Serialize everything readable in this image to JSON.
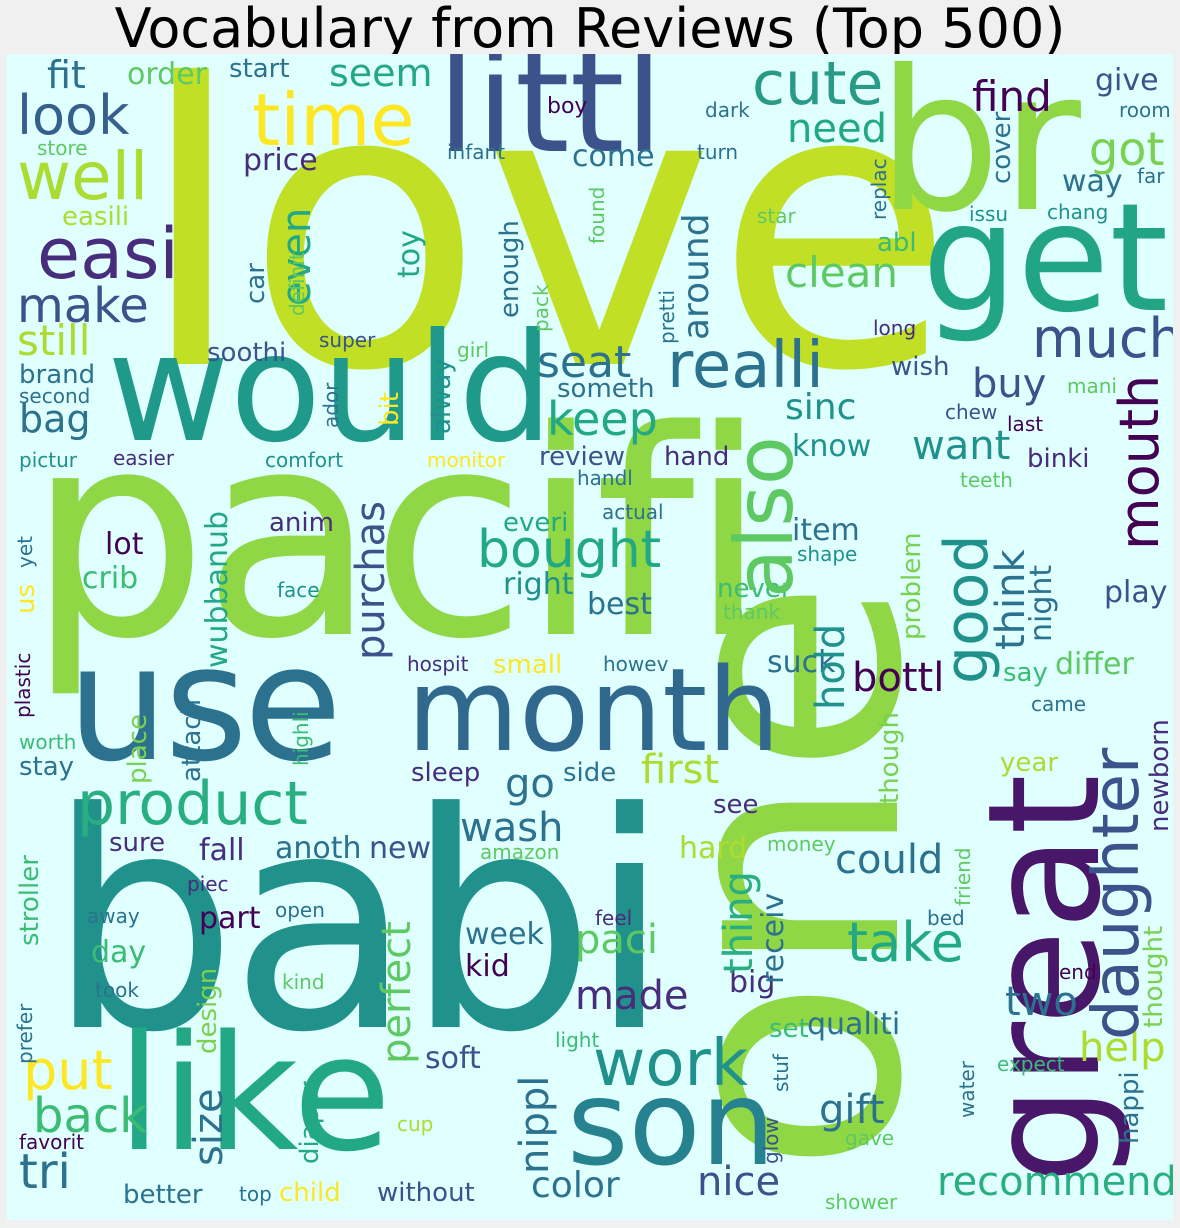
{
  "title": "Vocabulary from Reviews (Top 500)",
  "palette": {
    "background": "#e0ffff",
    "page": "#f0f0f0",
    "viridis": [
      "#440154",
      "#472d7b",
      "#3b528b",
      "#2c728e",
      "#21918c",
      "#28ae80",
      "#5ec962",
      "#addc30",
      "#fde725"
    ]
  },
  "words": [
    {
      "text": "love",
      "color": "#c0df25",
      "size": 390
    },
    {
      "text": "pacifi",
      "color": "#8fd744",
      "size": 285
    },
    {
      "text": "babi",
      "color": "#21918c",
      "size": 300
    },
    {
      "text": "one",
      "color": "#8fd744",
      "size": 320
    },
    {
      "text": "br",
      "color": "#8fd744",
      "size": 195
    },
    {
      "text": "littl",
      "color": "#3b528b",
      "size": 140
    },
    {
      "text": "get",
      "color": "#21a585",
      "size": 150
    },
    {
      "text": "would",
      "color": "#1f9a8a",
      "size": 150
    },
    {
      "text": "use",
      "color": "#2c728e",
      "size": 160
    },
    {
      "text": "like",
      "color": "#22a884",
      "size": 160
    },
    {
      "text": "great",
      "color": "#481769",
      "size": 155
    },
    {
      "text": "month",
      "color": "#31688e",
      "size": 115
    },
    {
      "text": "son",
      "color": "#26828e",
      "size": 118
    },
    {
      "text": "time",
      "color": "#fde725",
      "size": 72
    },
    {
      "text": "cute",
      "color": "#2a9a88",
      "size": 60
    },
    {
      "text": "well",
      "color": "#aadc32",
      "size": 66
    },
    {
      "text": "easi",
      "color": "#472d7b",
      "size": 70
    },
    {
      "text": "look",
      "color": "#35608d",
      "size": 54
    },
    {
      "text": "make",
      "color": "#3b528b",
      "size": 48
    },
    {
      "text": "fit",
      "color": "#2c728e",
      "size": 38
    },
    {
      "text": "order",
      "color": "#5ec962",
      "size": 30
    },
    {
      "text": "start",
      "color": "#2c728e",
      "size": 26
    },
    {
      "text": "seem",
      "color": "#22a884",
      "size": 38
    },
    {
      "text": "find",
      "color": "#440154",
      "size": 42
    },
    {
      "text": "give",
      "color": "#3b528b",
      "size": 30
    },
    {
      "text": "room",
      "color": "#2c728e",
      "size": 20
    },
    {
      "text": "boy",
      "color": "#440154",
      "size": 22
    },
    {
      "text": "dark",
      "color": "#2c728e",
      "size": 20
    },
    {
      "text": "need",
      "color": "#22a884",
      "size": 40
    },
    {
      "text": "got",
      "color": "#7ad151",
      "size": 46
    },
    {
      "text": "store",
      "color": "#5ec962",
      "size": 20
    },
    {
      "text": "infant",
      "color": "#2c728e",
      "size": 20
    },
    {
      "text": "turn",
      "color": "#2c728e",
      "size": 20
    },
    {
      "text": "price",
      "color": "#472d7b",
      "size": 30
    },
    {
      "text": "come",
      "color": "#2c728e",
      "size": 30
    },
    {
      "text": "way",
      "color": "#2c728e",
      "size": 30
    },
    {
      "text": "far",
      "color": "#2c728e",
      "size": 20
    },
    {
      "text": "easili",
      "color": "#addc30",
      "size": 26
    },
    {
      "text": "star",
      "color": "#5ec962",
      "size": 20
    },
    {
      "text": "issu",
      "color": "#21918c",
      "size": 20
    },
    {
      "text": "chang",
      "color": "#21918c",
      "size": 20
    },
    {
      "text": "clean",
      "color": "#5ec962",
      "size": 42
    },
    {
      "text": "abl",
      "color": "#3bbc75",
      "size": 26
    },
    {
      "text": "long",
      "color": "#472d7b",
      "size": 20
    },
    {
      "text": "still",
      "color": "#addc30",
      "size": 42
    },
    {
      "text": "much",
      "color": "#3b528b",
      "size": 54
    },
    {
      "text": "realli",
      "color": "#2c728e",
      "size": 64
    },
    {
      "text": "seat",
      "color": "#2c728e",
      "size": 44
    },
    {
      "text": "soothi",
      "color": "#3b528b",
      "size": 26
    },
    {
      "text": "super",
      "color": "#3b528b",
      "size": 20
    },
    {
      "text": "girl",
      "color": "#5ec962",
      "size": 20
    },
    {
      "text": "wish",
      "color": "#3b528b",
      "size": 26
    },
    {
      "text": "buy",
      "color": "#3b528b",
      "size": 40
    },
    {
      "text": "brand",
      "color": "#2c728e",
      "size": 26
    },
    {
      "text": "second",
      "color": "#2c728e",
      "size": 20
    },
    {
      "text": "someth",
      "color": "#2c728e",
      "size": 26
    },
    {
      "text": "bag",
      "color": "#2c728e",
      "size": 38
    },
    {
      "text": "keep",
      "color": "#22a884",
      "size": 46
    },
    {
      "text": "sinc",
      "color": "#21918c",
      "size": 36
    },
    {
      "text": "chew",
      "color": "#3b528b",
      "size": 20
    },
    {
      "text": "mani",
      "color": "#5ec962",
      "size": 20
    },
    {
      "text": "last",
      "color": "#440154",
      "size": 20
    },
    {
      "text": "pictur",
      "color": "#21918c",
      "size": 20
    },
    {
      "text": "easier",
      "color": "#472d7b",
      "size": 20
    },
    {
      "text": "comfort",
      "color": "#21918c",
      "size": 20
    },
    {
      "text": "monitor",
      "color": "#fde725",
      "size": 20
    },
    {
      "text": "review",
      "color": "#3b528b",
      "size": 26
    },
    {
      "text": "hand",
      "color": "#472d7b",
      "size": 26
    },
    {
      "text": "want",
      "color": "#21918c",
      "size": 40
    },
    {
      "text": "know",
      "color": "#21918c",
      "size": 30
    },
    {
      "text": "binki",
      "color": "#472d7b",
      "size": 26
    },
    {
      "text": "handl",
      "color": "#2c728e",
      "size": 20
    },
    {
      "text": "teeth",
      "color": "#5ec962",
      "size": 20
    },
    {
      "text": "actual",
      "color": "#2c728e",
      "size": 20
    },
    {
      "text": "anim",
      "color": "#472d7b",
      "size": 26
    },
    {
      "text": "everi",
      "color": "#22a884",
      "size": 26
    },
    {
      "text": "bought",
      "color": "#22a884",
      "size": 52
    },
    {
      "text": "item",
      "color": "#2c728e",
      "size": 30
    },
    {
      "text": "shape",
      "color": "#21918c",
      "size": 20
    },
    {
      "text": "lot",
      "color": "#440154",
      "size": 30
    },
    {
      "text": "crib",
      "color": "#3bbc75",
      "size": 30
    },
    {
      "text": "right",
      "color": "#21918c",
      "size": 30
    },
    {
      "text": "face",
      "color": "#21918c",
      "size": 20
    },
    {
      "text": "best",
      "color": "#2c728e",
      "size": 30
    },
    {
      "text": "never",
      "color": "#3bbc75",
      "size": 26
    },
    {
      "text": "thank",
      "color": "#5ec962",
      "size": 20
    },
    {
      "text": "play",
      "color": "#3b528b",
      "size": 30
    },
    {
      "text": "small",
      "color": "#fde725",
      "size": 26
    },
    {
      "text": "hospit",
      "color": "#472d7b",
      "size": 20
    },
    {
      "text": "howev",
      "color": "#2c728e",
      "size": 20
    },
    {
      "text": "suck",
      "color": "#2c728e",
      "size": 30
    },
    {
      "text": "bottl",
      "color": "#440154",
      "size": 40
    },
    {
      "text": "say",
      "color": "#3bbc75",
      "size": 26
    },
    {
      "text": "differ",
      "color": "#5ec962",
      "size": 30
    },
    {
      "text": "came",
      "color": "#2c728e",
      "size": 20
    },
    {
      "text": "place",
      "color": "#7ad151",
      "size": 26
    },
    {
      "text": "worth",
      "color": "#3bbc75",
      "size": 20
    },
    {
      "text": "stay",
      "color": "#2c728e",
      "size": 26
    },
    {
      "text": "sleep",
      "color": "#472d7b",
      "size": 26
    },
    {
      "text": "go",
      "color": "#2c728e",
      "size": 40
    },
    {
      "text": "side",
      "color": "#2c728e",
      "size": 26
    },
    {
      "text": "first",
      "color": "#addc30",
      "size": 40
    },
    {
      "text": "year",
      "color": "#addc30",
      "size": 26
    },
    {
      "text": "product",
      "color": "#28ae80",
      "size": 60
    },
    {
      "text": "see",
      "color": "#472d7b",
      "size": 26
    },
    {
      "text": "wash",
      "color": "#2c728e",
      "size": 40
    },
    {
      "text": "sure",
      "color": "#472d7b",
      "size": 26
    },
    {
      "text": "fall",
      "color": "#472d7b",
      "size": 30
    },
    {
      "text": "anoth",
      "color": "#2c728e",
      "size": 30
    },
    {
      "text": "new",
      "color": "#3b528b",
      "size": 30
    },
    {
      "text": "amazon",
      "color": "#5ec962",
      "size": 20
    },
    {
      "text": "hard",
      "color": "#addc30",
      "size": 30
    },
    {
      "text": "money",
      "color": "#5ec962",
      "size": 20
    },
    {
      "text": "could",
      "color": "#2c728e",
      "size": 40
    },
    {
      "text": "piec",
      "color": "#472d7b",
      "size": 20
    },
    {
      "text": "away",
      "color": "#2c728e",
      "size": 20
    },
    {
      "text": "open",
      "color": "#2c728e",
      "size": 20
    },
    {
      "text": "part",
      "color": "#440154",
      "size": 30
    },
    {
      "text": "feel",
      "color": "#472d7b",
      "size": 20
    },
    {
      "text": "day",
      "color": "#3bbc75",
      "size": 30
    },
    {
      "text": "week",
      "color": "#2c728e",
      "size": 30
    },
    {
      "text": "kid",
      "color": "#440154",
      "size": 30
    },
    {
      "text": "paci",
      "color": "#5ec962",
      "size": 40
    },
    {
      "text": "take",
      "color": "#22a884",
      "size": 54
    },
    {
      "text": "two",
      "color": "#2c728e",
      "size": 40
    },
    {
      "text": "bed",
      "color": "#2c728e",
      "size": 20
    },
    {
      "text": "end",
      "color": "#440154",
      "size": 20
    },
    {
      "text": "kind",
      "color": "#5ec962",
      "size": 20
    },
    {
      "text": "took",
      "color": "#2c728e",
      "size": 20
    },
    {
      "text": "made",
      "color": "#472d7b",
      "size": 40
    },
    {
      "text": "big",
      "color": "#472d7b",
      "size": 30
    },
    {
      "text": "set",
      "color": "#3bbc75",
      "size": 26
    },
    {
      "text": "qualiti",
      "color": "#2c728e",
      "size": 30
    },
    {
      "text": "help",
      "color": "#addc30",
      "size": 40
    },
    {
      "text": "soft",
      "color": "#3b528b",
      "size": 30
    },
    {
      "text": "light",
      "color": "#3bbc75",
      "size": 20
    },
    {
      "text": "expect",
      "color": "#3bbc75",
      "size": 20
    },
    {
      "text": "put",
      "color": "#fde725",
      "size": 54
    },
    {
      "text": "back",
      "color": "#3bbc75",
      "size": 48
    },
    {
      "text": "work",
      "color": "#21918c",
      "size": 64
    },
    {
      "text": "gift",
      "color": "#2c728e",
      "size": 40
    },
    {
      "text": "gave",
      "color": "#5ec962",
      "size": 20
    },
    {
      "text": "tri",
      "color": "#2c728e",
      "size": 48
    },
    {
      "text": "favorit",
      "color": "#440154",
      "size": 20
    },
    {
      "text": "cup",
      "color": "#addc30",
      "size": 20
    },
    {
      "text": "better",
      "color": "#2c728e",
      "size": 26
    },
    {
      "text": "top",
      "color": "#2c728e",
      "size": 20
    },
    {
      "text": "child",
      "color": "#fde725",
      "size": 26
    },
    {
      "text": "without",
      "color": "#3b528b",
      "size": 26
    },
    {
      "text": "color",
      "color": "#2c728e",
      "size": 36
    },
    {
      "text": "nice",
      "color": "#3b528b",
      "size": 40
    },
    {
      "text": "recommend",
      "color": "#28ae80",
      "size": 40
    },
    {
      "text": "shower",
      "color": "#5ec962",
      "size": 20
    },
    {
      "text": "also",
      "color": "#5ec962",
      "size": 80
    },
    {
      "text": "hold",
      "color": "#21918c",
      "size": 40
    },
    {
      "text": "good",
      "color": "#21918c",
      "size": 60
    },
    {
      "text": "mouth",
      "color": "#440154",
      "size": 54
    },
    {
      "text": "think",
      "color": "#2c728e",
      "size": 40
    },
    {
      "text": "night",
      "color": "#2c728e",
      "size": 30
    },
    {
      "text": "daughter",
      "color": "#3b528b",
      "size": 64
    },
    {
      "text": "purchas",
      "color": "#3b528b",
      "size": 40
    },
    {
      "text": "wubbanub",
      "color": "#22a884",
      "size": 30
    },
    {
      "text": "around",
      "color": "#2c728e",
      "size": 36
    },
    {
      "text": "enough",
      "color": "#2c728e",
      "size": 26
    },
    {
      "text": "even",
      "color": "#22a884",
      "size": 40
    },
    {
      "text": "car",
      "color": "#2c728e",
      "size": 26
    },
    {
      "text": "toy",
      "color": "#22a884",
      "size": 30
    },
    {
      "text": "pack",
      "color": "#5ec962",
      "size": 20
    },
    {
      "text": "pretti",
      "color": "#2c728e",
      "size": 20
    },
    {
      "text": "found",
      "color": "#5ec962",
      "size": 20
    },
    {
      "text": "replac",
      "color": "#2c728e",
      "size": 20
    },
    {
      "text": "cover",
      "color": "#2c728e",
      "size": 26
    },
    {
      "text": "definit",
      "color": "#5ec962",
      "size": 20
    },
    {
      "text": "bit",
      "color": "#fde725",
      "size": 26
    },
    {
      "text": "ador",
      "color": "#2c728e",
      "size": 20
    },
    {
      "text": "alway",
      "color": "#21918c",
      "size": 26
    },
    {
      "text": "us",
      "color": "#fde725",
      "size": 26
    },
    {
      "text": "yet",
      "color": "#2c728e",
      "size": 20
    },
    {
      "text": "plastic",
      "color": "#440154",
      "size": 20
    },
    {
      "text": "highli",
      "color": "#3bbc75",
      "size": 20
    },
    {
      "text": "attach",
      "color": "#2c728e",
      "size": 26
    },
    {
      "text": "size",
      "color": "#2c728e",
      "size": 40
    },
    {
      "text": "design",
      "color": "#7ad151",
      "size": 26
    },
    {
      "text": "diaper",
      "color": "#22a884",
      "size": 26
    },
    {
      "text": "perfect",
      "color": "#5ec962",
      "size": 40
    },
    {
      "text": "nippl",
      "color": "#2c728e",
      "size": 40
    },
    {
      "text": "thing",
      "color": "#28ae80",
      "size": 40
    },
    {
      "text": "receiv",
      "color": "#2c728e",
      "size": 30
    },
    {
      "text": "problem",
      "color": "#7ad151",
      "size": 26
    },
    {
      "text": "though",
      "color": "#7ad151",
      "size": 26
    },
    {
      "text": "newborn",
      "color": "#472d7b",
      "size": 26
    },
    {
      "text": "thought",
      "color": "#7ad151",
      "size": 26
    },
    {
      "text": "friend",
      "color": "#5ec962",
      "size": 20
    },
    {
      "text": "water",
      "color": "#2c728e",
      "size": 20
    },
    {
      "text": "stuf",
      "color": "#2c728e",
      "size": 20
    },
    {
      "text": "glow",
      "color": "#3b528b",
      "size": 20
    },
    {
      "text": "happi",
      "color": "#2c728e",
      "size": 26
    },
    {
      "text": "stroller",
      "color": "#3bbc75",
      "size": 26
    },
    {
      "text": "prefer",
      "color": "#2c728e",
      "size": 20
    }
  ]
}
